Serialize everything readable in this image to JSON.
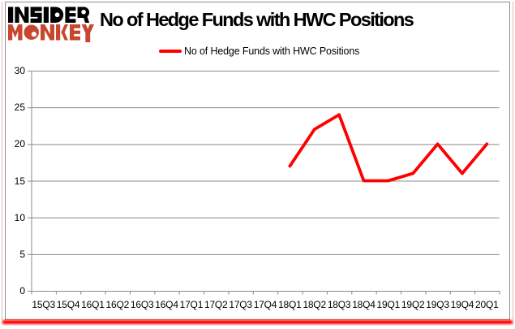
{
  "page": {
    "background": "#ffffff",
    "frame_color": "#8e8e8e"
  },
  "logo": {
    "line1": "INSIDER",
    "line2": "MONKEY",
    "line1_color": "#000000",
    "line2_color": "#c7462f"
  },
  "header": {
    "title": "No of Hedge Funds with HWC Positions"
  },
  "legend": {
    "label": "No of Hedge Funds with HWC Positions",
    "swatch_color": "#ff0000"
  },
  "decor": {
    "bottom_bar_color": "#ff0000"
  },
  "chart_data": {
    "type": "line",
    "title": "No of Hedge Funds with HWC Positions",
    "categories": [
      "15Q3",
      "15Q4",
      "16Q1",
      "16Q2",
      "16Q3",
      "16Q4",
      "17Q1",
      "17Q2",
      "17Q3",
      "17Q4",
      "18Q1",
      "18Q2",
      "18Q3",
      "18Q4",
      "19Q1",
      "19Q2",
      "19Q3",
      "19Q4",
      "20Q1"
    ],
    "series": [
      {
        "name": "No of Hedge Funds with HWC Positions",
        "color": "#ff0000",
        "values": [
          null,
          null,
          null,
          null,
          null,
          null,
          null,
          null,
          null,
          null,
          17,
          22,
          24,
          15,
          15,
          16,
          20,
          16,
          20
        ]
      }
    ],
    "ylim": [
      0,
      30
    ],
    "yticks": [
      0,
      5,
      10,
      15,
      20,
      25,
      30
    ],
    "grid": true,
    "grid_color": "#8a8a8a",
    "axis_color": "#8a8a8a",
    "legend_position": "top",
    "xlabel": "",
    "ylabel": ""
  }
}
